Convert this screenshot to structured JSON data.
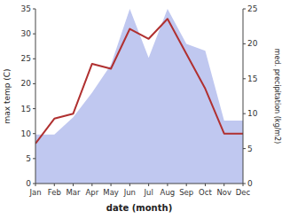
{
  "chart_data": {
    "type": "line",
    "categories": [
      "Jan",
      "Feb",
      "Mar",
      "Apr",
      "May",
      "Jun",
      "Jul",
      "Aug",
      "Sep",
      "Oct",
      "Nov",
      "Dec"
    ],
    "xlabel": "date (month)",
    "ylabel": "max temp (C)",
    "y2label": "med. precipitation (kg/m2)",
    "series": [
      {
        "type": "area",
        "axis": "y2",
        "color": "#c0c8f0",
        "values": [
          7,
          7,
          9.5,
          13,
          17,
          25,
          18,
          25,
          20,
          19,
          9,
          9
        ]
      },
      {
        "type": "line",
        "color": "#b03030",
        "values": [
          8,
          13,
          14,
          24,
          23,
          31,
          29,
          33,
          26,
          19,
          10,
          10
        ]
      }
    ],
    "ylim": [
      0,
      35
    ],
    "yticks": [
      0,
      5,
      10,
      15,
      20,
      25,
      30,
      35
    ],
    "y2lim": [
      0,
      25
    ],
    "y2ticks": [
      0,
      5,
      10,
      15,
      20,
      25
    ],
    "grid": false
  }
}
